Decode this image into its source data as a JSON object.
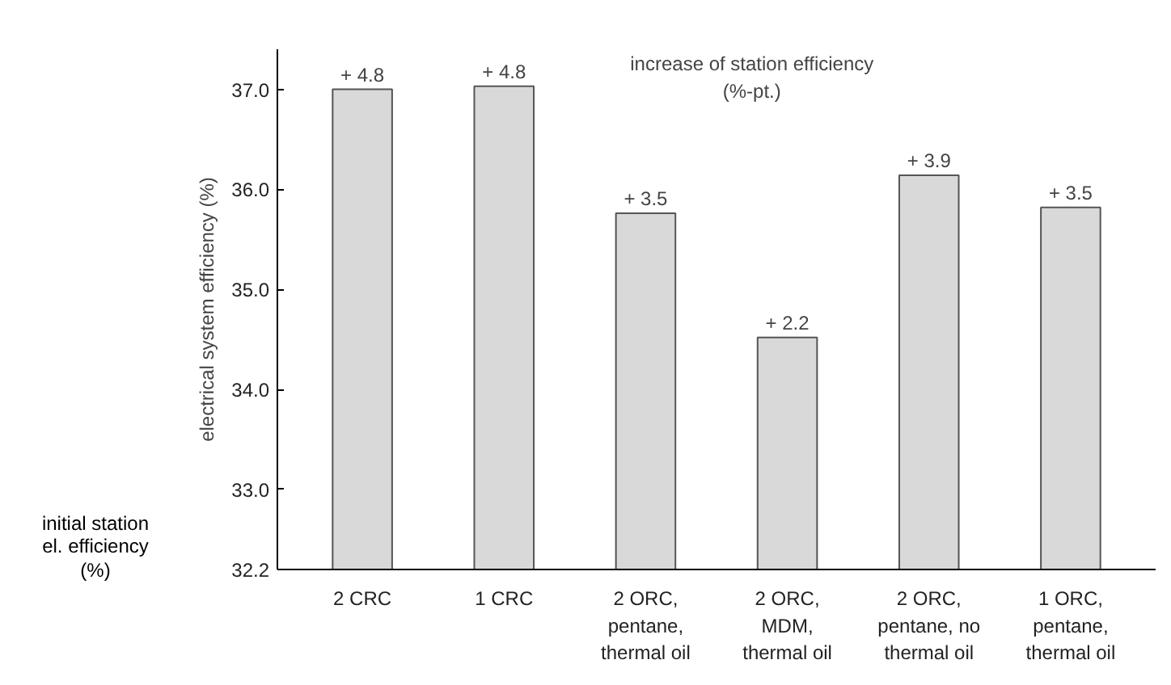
{
  "chart_data": {
    "type": "bar",
    "ylabel": "electrical system efficiency (%)",
    "categories": [
      "2 CRC",
      "1 CRC",
      "2 ORC,\npentane,\nthermal oil",
      "2 ORC,\nMDM,\nthermal oil",
      "2 ORC,\npentane, no\nthermal oil",
      "1 ORC,\npentane,\nthermal oil"
    ],
    "values": [
      37.0,
      37.03,
      35.76,
      34.52,
      36.14,
      35.82
    ],
    "color": "#d9d9d9",
    "ylim": [
      32.2,
      37.4
    ],
    "yticks": [
      32.2,
      {
        "value": 33.0,
        "label": "33.0"
      },
      {
        "value": 34.0,
        "label": "34.0"
      },
      {
        "value": 35.0,
        "label": "35.0"
      },
      {
        "value": 36.0,
        "label": "36.0"
      },
      {
        "value": 37.0,
        "label": "37.0"
      }
    ],
    "annotations": [
      "increase of station efficiency\n(%-pt.)",
      "initial station\nel. efficiency\n(%)",
      {
        "text": "+ 4.8",
        "x": "2 CRC",
        "y": 37.0
      },
      {
        "text": "+ 4.8",
        "x": "1 CRC",
        "y": 37.03
      },
      {
        "text": "+ 3.5",
        "x": "2 ORC,\npentane,\nthermal oil",
        "y": 35.76
      },
      {
        "text": "+ 2.2",
        "x": "2 ORC,\nMDM,\nthermal oil",
        "y": 34.52
      },
      {
        "text": "+ 3.9",
        "x": "2 ORC,\npentane, no\nthermal oil",
        "y": 36.14
      },
      {
        "text": "+ 3.5",
        "x": "1 ORC,\npentane,\nthermal oil",
        "y": 35.82
      }
    ],
    "grid": false
  }
}
